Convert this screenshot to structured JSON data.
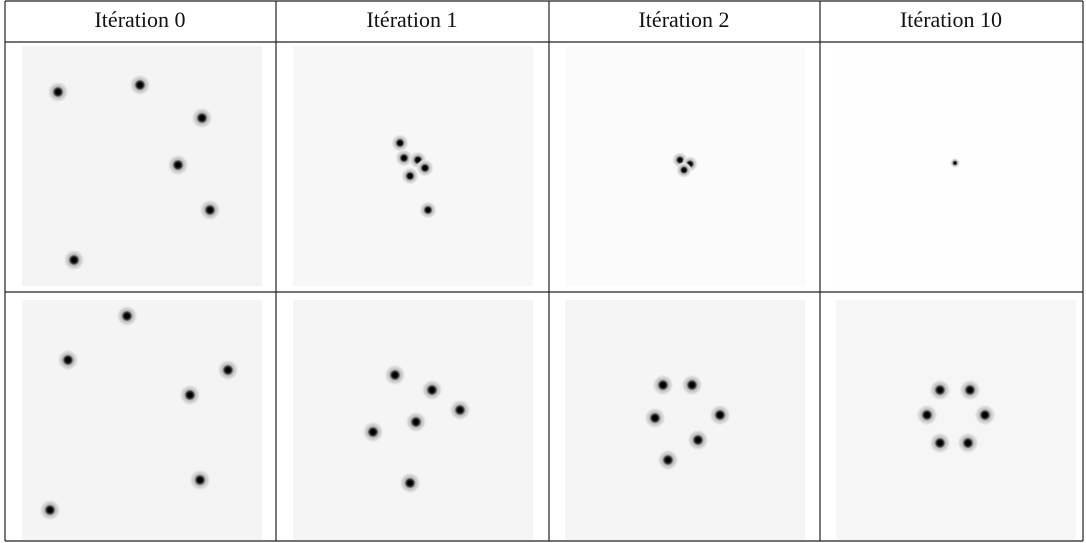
{
  "table": {
    "header": [
      "Itération 0",
      "Itération 1",
      "Itération 2",
      "Itération 10"
    ]
  }
}
